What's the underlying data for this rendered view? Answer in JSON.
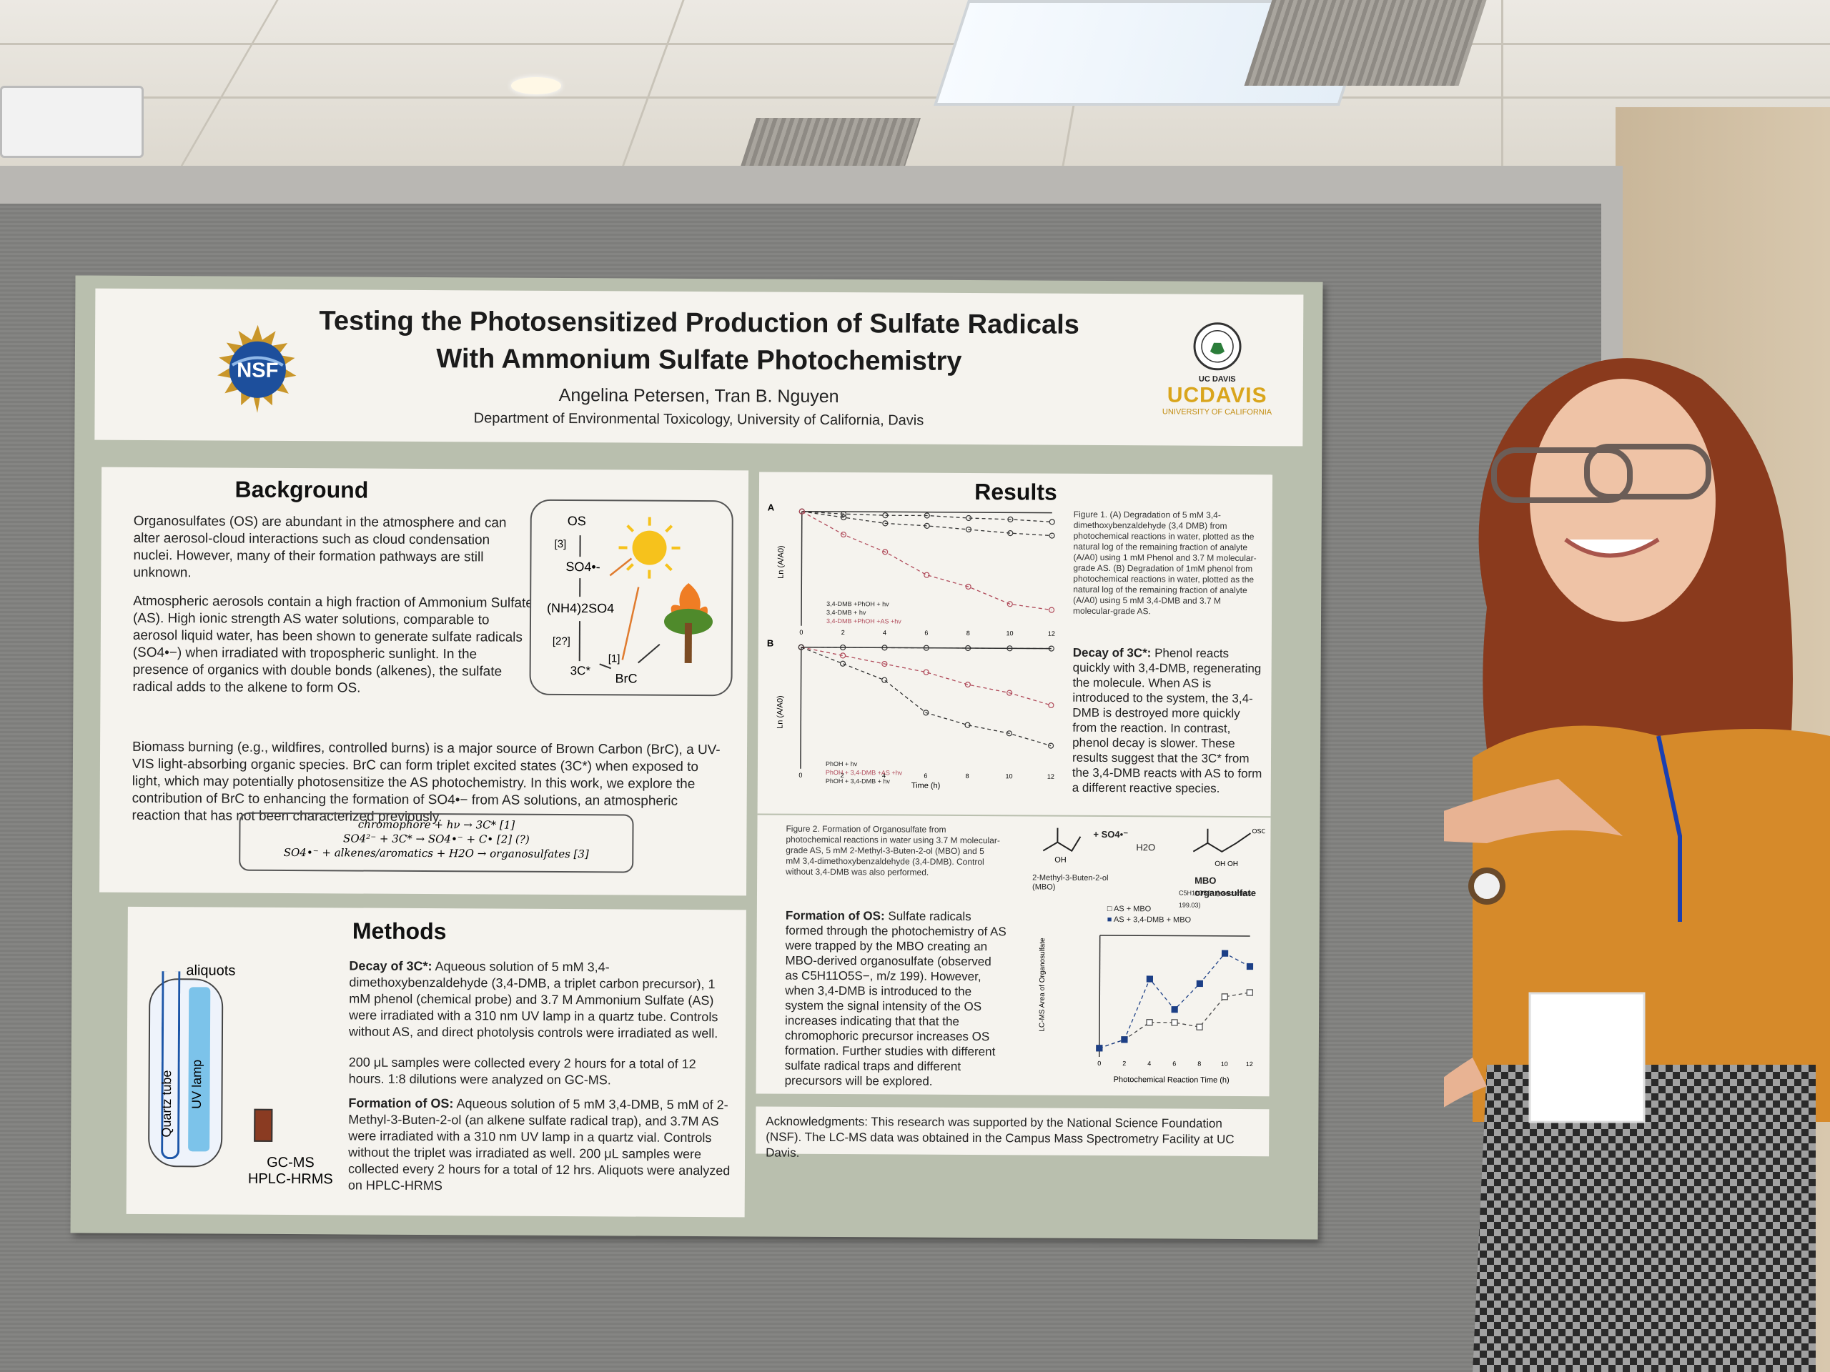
{
  "poster": {
    "title_line1": "Testing the Photosensitized Production of Sulfate Radicals",
    "title_line2": "With Ammonium Sulfate Photochemistry",
    "authors": "Angelina Petersen, Tran B. Nguyen",
    "department": "Department of Environmental Toxicology, University of California, Davis",
    "left_logo_text": "NSF",
    "right_logo_top": "UC DAVIS",
    "right_logo_main": "UCDAVIS",
    "right_logo_sub": "UNIVERSITY OF CALIFORNIA"
  },
  "background": {
    "heading": "Background",
    "p1": "Organosulfates (OS) are abundant in the atmosphere and can alter aerosol-cloud interactions such as cloud condensation nuclei. However, many of their formation pathways are still unknown.",
    "p2": "Atmospheric aerosols contain a high fraction of Ammonium Sulfate (AS). High ionic strength AS water solutions, comparable to aerosol liquid water, has been shown to generate sulfate radicals (SO4•−) when irradiated with tropospheric sunlight. In the presence of organics with double bonds (alkenes), the sulfate radical adds to the alkene to form OS.",
    "p3": "Biomass burning (e.g., wildfires, controlled burns) is a major source of Brown Carbon (BrC), a UV-VIS light-absorbing organic species. BrC can form triplet excited states (3C*) when exposed to light, which may potentially photosensitize the AS photochemistry. In this work, we explore the contribution of BrC to enhancing the formation of SO4•− from AS solutions, an atmospheric reaction that has not been characterized previously.",
    "diagram": {
      "os": "OS",
      "step3": "[3]",
      "so4": "SO4•-",
      "nh4": "(NH4)2SO4",
      "step2": "[2?]",
      "triplet": "3C*",
      "step1": "[1]",
      "brc": "BrC"
    },
    "equations": [
      "chromophore + hν → 3C*   [1]",
      "SO4²⁻ + 3C* → SO4•⁻ + C•   [2] (?)",
      "SO4•⁻ + alkenes/aromatics + H2O → organosulfates   [3]"
    ]
  },
  "methods": {
    "heading": "Methods",
    "aliquots": "aliquots",
    "quartz": "Quartz tube",
    "uv": "UV lamp",
    "instruments_1": "GC-MS",
    "instruments_2": "HPLC-HRMS",
    "b1_lead": "Decay of 3C*:",
    "b1": "Aqueous solution of 5 mM 3,4-dimethoxybenzaldehyde (3,4-DMB, a triplet carbon precursor), 1 mM phenol (chemical probe) and 3.7 M Ammonium Sulfate (AS) were irradiated with a 310 nm UV lamp in a quartz tube. Controls without AS, and direct photolysis controls were irradiated as well.",
    "b2": "200 μL samples were collected every 2 hours for a total of 12 hours. 1:8 dilutions were analyzed on GC-MS.",
    "b3_lead": "Formation of OS:",
    "b3": "Aqueous solution of 5 mM 3,4-DMB, 5 mM of 2-Methyl-3-Buten-2-ol (an alkene sulfate radical trap), and 3.7M AS were irradiated with a 310 nm UV lamp in a quartz vial. Controls without the triplet was irradiated as well. 200 μL samples were collected every 2 hours for a total of 12 hrs. Aliquots were analyzed on HPLC-HRMS"
  },
  "results": {
    "heading": "Results",
    "panel_a": "A",
    "panel_b": "B",
    "y_label_a": "Ln (A/A0)",
    "y_label_b": "Ln (A/A0)",
    "x_label": "Time (h)",
    "legend_a": [
      "3,4-DMB +PhOH + hv",
      "3,4-DMB + hv",
      "3,4-DMB +PhOH +AS +hv"
    ],
    "legend_b": [
      "PhOH + hv",
      "PhOH + 3,4-DMB +AS +hv",
      "PhOH + 3,4-DMB + hv"
    ],
    "fig1_caption": "Figure 1. (A) Degradation of 5 mM 3,4-dimethoxybenzaldehyde (3,4 DMB) from photochemical reactions in water, plotted as the natural log of the remaining fraction of analyte (A/A0) using 1 mM Phenol and 3.7 M molecular-grade AS. (B) Degradation of 1mM phenol from photochemical reactions in water, plotted as the natural log of the remaining fraction of analyte (A/A0) using 5 mM 3,4-DMB and 3.7 M molecular-grade AS.",
    "decay_lead": "Decay of 3C*:",
    "decay_text": "Phenol reacts quickly with 3,4-DMB, regenerating the molecule. When AS is introduced to the system, the 3,4-DMB is destroyed more quickly from the reaction. In contrast, phenol decay is slower. These results suggest that the 3C* from the 3,4-DMB reacts with AS to form a different reactive species.",
    "fig2_caption": "Figure 2. Formation of Organosulfate from photochemical reactions in water using 3.7 M molecular-grade AS, 5 mM 2-Methyl-3-Buten-2-ol (MBO) and 5 mM 3,4-dimethoxybenzaldehyde (3,4-DMB). Control without 3,4-DMB was also performed.",
    "mbo_label": "2-Methyl-3-Buten-2-ol (MBO)",
    "plus_so4": "+ SO4•⁻",
    "h2o": "H2O",
    "mbo_os": "MBO organosulfate",
    "mbo_formula": "C5H11O5S⁻ (exact mass 199.03)",
    "formation_lead": "Formation of OS:",
    "formation_text": "Sulfate radicals formed through the photochemistry of AS were trapped by the MBO creating an MBO-derived organosulfate (observed as C5H11O5S−, m/z 199). However, when 3,4-DMB is introduced to the system the signal intensity of the OS increases indicating that that the chromophoric precursor increases OS formation. Further studies with different sulfate radical traps and different precursors will be explored.",
    "plot2_legend": [
      "AS + MBO",
      "AS + 3,4-DMB + MBO"
    ],
    "plot2_ylabel": "LC-MS Area of Organosulfate",
    "plot2_xlabel": "Photochemical Reaction Time (h)",
    "ack": "Acknowledgments: This research was supported by the National Science Foundation (NSF). The LC-MS data was obtained in the Campus Mass Spectrometry Facility at UC Davis."
  },
  "chart_data": [
    {
      "type": "scatter",
      "x": [
        0,
        2,
        4,
        6,
        8,
        10,
        12
      ],
      "ylim": [
        -1.0,
        0.0
      ],
      "xlabel": "Time (h)",
      "ylabel": "Ln (A/A0)",
      "series": [
        {
          "name": "3,4-DMB +PhOH + hv",
          "values": [
            0,
            -0.02,
            -0.03,
            -0.03,
            -0.05,
            -0.06,
            -0.08
          ]
        },
        {
          "name": "3,4-DMB + hv",
          "values": [
            0,
            -0.05,
            -0.1,
            -0.12,
            -0.15,
            -0.18,
            -0.2
          ]
        },
        {
          "name": "3,4-DMB +PhOH +AS +hv",
          "values": [
            0,
            -0.2,
            -0.35,
            -0.55,
            -0.65,
            -0.8,
            -0.85
          ]
        }
      ]
    },
    {
      "type": "scatter",
      "x": [
        0,
        2,
        4,
        6,
        8,
        10,
        12
      ],
      "ylim": [
        -3.0,
        0.0
      ],
      "yticks": [
        "0.00",
        "-1.00",
        "-2.00",
        "-3.00"
      ],
      "xlabel": "Time (h)",
      "ylabel": "Ln (A/A0)",
      "series": [
        {
          "name": "PhOH + hv",
          "values": [
            0,
            0,
            0,
            0,
            0,
            0,
            0
          ]
        },
        {
          "name": "PhOH + 3,4-DMB +AS +hv",
          "values": [
            0,
            -0.2,
            -0.4,
            -0.6,
            -0.9,
            -1.1,
            -1.4
          ]
        },
        {
          "name": "PhOH + 3,4-DMB + hv",
          "values": [
            0,
            -0.4,
            -0.8,
            -1.6,
            -1.9,
            -2.1,
            -2.4
          ]
        }
      ]
    },
    {
      "type": "scatter",
      "x": [
        0,
        2,
        4,
        6,
        8,
        10,
        12
      ],
      "ylim": [
        0,
        1.4
      ],
      "ylabel": "LC-MS Area of Organosulfate",
      "xlabel": "Photochemical Reaction Time (h)",
      "series": [
        {
          "name": "AS + MBO",
          "values": [
            0.1,
            0.2,
            0.4,
            0.4,
            0.35,
            0.7,
            0.75
          ]
        },
        {
          "name": "AS + 3,4-DMB + MBO",
          "values": [
            0.1,
            0.2,
            0.9,
            0.55,
            0.85,
            1.2,
            1.05
          ]
        }
      ]
    }
  ]
}
